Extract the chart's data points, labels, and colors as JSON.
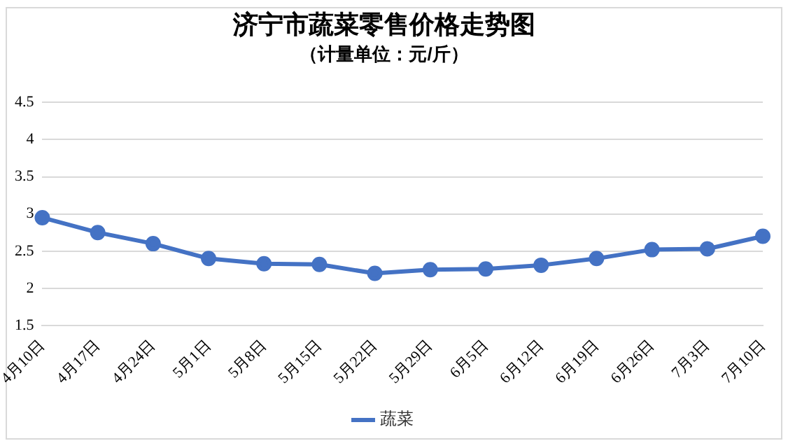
{
  "chart_data": {
    "type": "line",
    "title": "济宁市蔬菜零售价格走势图",
    "subtitle": "（计量单位：元/斤）",
    "categories": [
      "4月10日",
      "4月17日",
      "4月24日",
      "5月1日",
      "5月8日",
      "5月15日",
      "5月22日",
      "5月29日",
      "6月5日",
      "6月12日",
      "6月19日",
      "6月26日",
      "7月3日",
      "7月10日"
    ],
    "series": [
      {
        "name": "蔬菜",
        "color": "#4472c4",
        "values": [
          2.95,
          2.75,
          2.6,
          2.4,
          2.33,
          2.32,
          2.2,
          2.25,
          2.26,
          2.31,
          2.4,
          2.52,
          2.53,
          2.7
        ]
      }
    ],
    "ylim": [
      1.5,
      4.5
    ],
    "yticks": [
      1.5,
      2,
      2.5,
      3,
      3.5,
      4,
      4.5
    ],
    "grid": "y",
    "legend": "bottom",
    "marker": "circle",
    "line_style": "solid"
  }
}
